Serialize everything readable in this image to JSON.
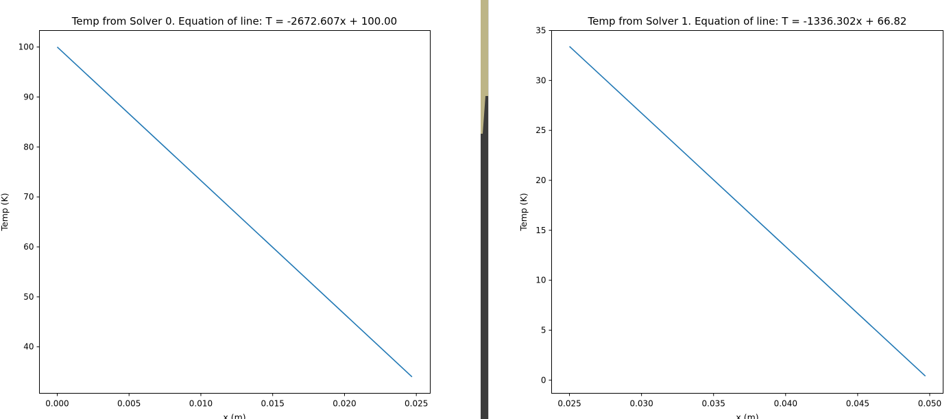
{
  "colors": {
    "background": "#ffffff",
    "series": "#1f77b4",
    "divider_dark": "#3b3b3b",
    "divider_khaki": "#bdb587",
    "divider_shade": "#d8d8d8"
  },
  "chart_data": [
    {
      "type": "line",
      "title": "Temp from Solver 0. Equation of line: T = -2672.607x + 100.00",
      "xlabel": "x (m)",
      "ylabel": "Temp (K)",
      "xlim": [
        -0.00124,
        0.02597
      ],
      "ylim": [
        30.7,
        103.3
      ],
      "xticks": [
        0.0,
        0.005,
        0.01,
        0.015,
        0.02,
        0.025
      ],
      "xtick_labels": [
        "0.000",
        "0.005",
        "0.010",
        "0.015",
        "0.020",
        "0.025"
      ],
      "yticks": [
        40,
        50,
        60,
        70,
        80,
        90,
        100
      ],
      "ytick_labels": [
        "40",
        "50",
        "60",
        "70",
        "80",
        "90",
        "100"
      ],
      "grid": false,
      "series": [
        {
          "x": [
            0.0,
            0.0247
          ],
          "y": [
            100.0,
            33.99
          ]
        }
      ]
    },
    {
      "type": "line",
      "title": "Temp from Solver 1. Equation of line: T = -1336.302x + 66.82",
      "xlabel": "x (m)",
      "ylabel": "Temp (K)",
      "xlim": [
        0.02376,
        0.05093
      ],
      "ylim": [
        -1.32,
        35.0
      ],
      "xticks": [
        0.025,
        0.03,
        0.035,
        0.04,
        0.045,
        0.05
      ],
      "xtick_labels": [
        "0.025",
        "0.030",
        "0.035",
        "0.040",
        "0.045",
        "0.050"
      ],
      "yticks": [
        0,
        5,
        10,
        15,
        20,
        25,
        30,
        35
      ],
      "ytick_labels": [
        "0",
        "5",
        "10",
        "15",
        "20",
        "25",
        "30",
        "35"
      ],
      "grid": false,
      "series": [
        {
          "x": [
            0.025,
            0.0497
          ],
          "y": [
            33.41,
            0.4
          ]
        }
      ]
    }
  ]
}
